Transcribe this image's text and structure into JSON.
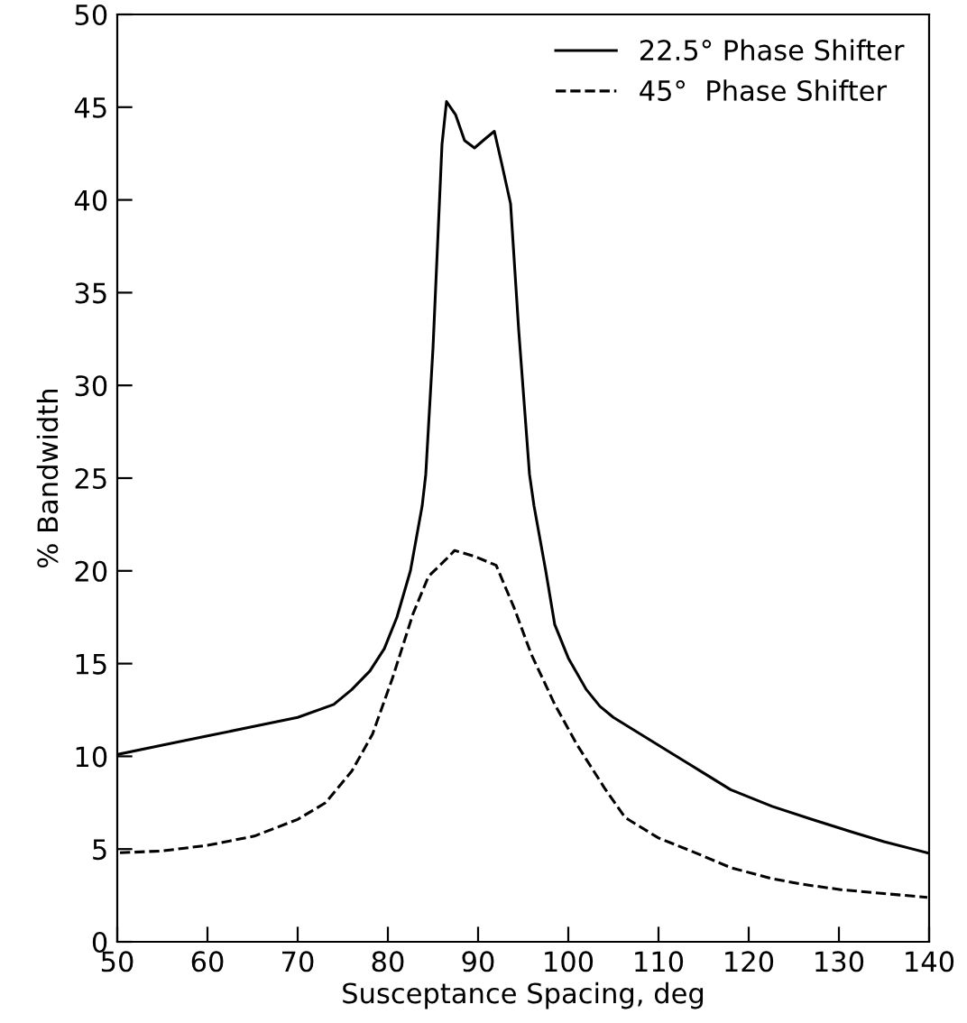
{
  "chart_data": {
    "type": "line",
    "xlabel": "Susceptance Spacing, deg",
    "ylabel": "% Bandwidth",
    "xlim": [
      50,
      140
    ],
    "ylim": [
      0,
      50
    ],
    "xticks": [
      50,
      60,
      70,
      80,
      90,
      100,
      110,
      120,
      130,
      140
    ],
    "yticks": [
      0,
      5,
      10,
      15,
      20,
      25,
      30,
      35,
      40,
      45,
      50
    ],
    "grid": false,
    "legend": "top right",
    "marker": "none",
    "series": [
      {
        "name": "22.5° Phase Shifter",
        "color": "#000000",
        "line_style": "solid",
        "x": [
          50,
          55,
          60,
          65,
          70,
          74,
          76,
          78,
          79.6,
          81,
          82.5,
          83.8,
          84.2,
          85,
          86,
          86.5,
          87.5,
          88.5,
          89.6,
          90.8,
          91.8,
          92.6,
          93.6,
          94.5,
          95.7,
          96.2,
          97.5,
          98.5,
          100,
          102,
          103.5,
          105,
          108,
          111,
          115,
          118,
          122.6,
          127,
          131.6,
          135,
          139.8
        ],
        "values": [
          10.1,
          10.6,
          11.1,
          11.6,
          12.1,
          12.8,
          13.6,
          14.6,
          15.8,
          17.5,
          20,
          23.5,
          25.2,
          32,
          43,
          45.3,
          44.6,
          43.2,
          42.8,
          43.3,
          43.7,
          42,
          39.8,
          33,
          25.2,
          23.5,
          20,
          17.1,
          15.3,
          13.6,
          12.7,
          12.1,
          11.2,
          10.3,
          9.1,
          8.2,
          7.3,
          6.6,
          5.9,
          5.4,
          4.8
        ]
      },
      {
        "name": "45°  Phase Shifter",
        "color": "#000000",
        "line_style": "dashed",
        "x": [
          50.3,
          55,
          60,
          65.2,
          70,
          73.1,
          76,
          78.3,
          80.5,
          82.8,
          84.5,
          86.4,
          87.4,
          89.5,
          92,
          94,
          95.9,
          98.5,
          101,
          104,
          106.3,
          110,
          114.1,
          118,
          122.6,
          126,
          130.4,
          135,
          139.8
        ],
        "values": [
          4.8,
          4.9,
          5.2,
          5.7,
          6.6,
          7.5,
          9.2,
          11.2,
          14.2,
          17.7,
          19.7,
          20.6,
          21.1,
          20.8,
          20.3,
          18,
          15.5,
          12.8,
          10.6,
          8.3,
          6.7,
          5.6,
          4.8,
          4,
          3.4,
          3.1,
          2.8,
          2.6,
          2.4
        ]
      }
    ]
  }
}
